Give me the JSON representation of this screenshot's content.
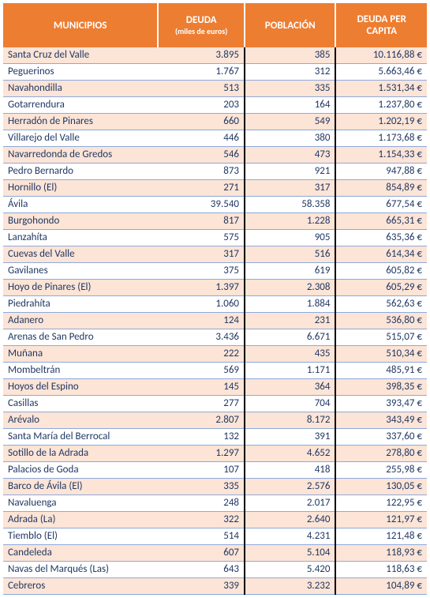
{
  "table": {
    "headers": {
      "municipios": "MUNICIPIOS",
      "deuda": "DEUDA",
      "deuda_sub": "(miles de euros)",
      "poblacion": "POBLACIÓN",
      "per_capita": "DEUDA PER CAPITA"
    },
    "colors": {
      "header_bg": "#ed7d31",
      "header_text": "#ffffff",
      "row_odd_bg": "#fce4d6",
      "row_even_bg": "#ffffff",
      "cell_text": "#203864",
      "row_border": "#8ea9db",
      "col_divider": "#000000"
    },
    "font_size_body": 13,
    "font_size_header": 13,
    "rows": [
      {
        "muni": "Santa Cruz del Valle",
        "deuda": "3.895",
        "pob": "385",
        "pc": "10.116,88 €"
      },
      {
        "muni": "Peguerinos",
        "deuda": "1.767",
        "pob": "312",
        "pc": "5.663,46 €"
      },
      {
        "muni": "Navahondilla",
        "deuda": "513",
        "pob": "335",
        "pc": "1.531,34 €"
      },
      {
        "muni": "Gotarrendura",
        "deuda": "203",
        "pob": "164",
        "pc": "1.237,80 €"
      },
      {
        "muni": "Herradón de Pinares",
        "deuda": "660",
        "pob": "549",
        "pc": "1.202,19 €"
      },
      {
        "muni": "Villarejo del Valle",
        "deuda": "446",
        "pob": "380",
        "pc": "1.173,68 €"
      },
      {
        "muni": "Navarredonda de Gredos",
        "deuda": "546",
        "pob": "473",
        "pc": "1.154,33 €"
      },
      {
        "muni": "Pedro Bernardo",
        "deuda": "873",
        "pob": "921",
        "pc": "947,88 €"
      },
      {
        "muni": "Hornillo (El)",
        "deuda": "271",
        "pob": "317",
        "pc": "854,89 €"
      },
      {
        "muni": "Ávila",
        "deuda": "39.540",
        "pob": "58.358",
        "pc": "677,54 €"
      },
      {
        "muni": "Burgohondo",
        "deuda": "817",
        "pob": "1.228",
        "pc": "665,31 €"
      },
      {
        "muni": "Lanzahíta",
        "deuda": "575",
        "pob": "905",
        "pc": "635,36 €"
      },
      {
        "muni": "Cuevas del Valle",
        "deuda": "317",
        "pob": "516",
        "pc": "614,34 €"
      },
      {
        "muni": "Gavilanes",
        "deuda": "375",
        "pob": "619",
        "pc": "605,82 €"
      },
      {
        "muni": "Hoyo de Pinares (El)",
        "deuda": "1.397",
        "pob": "2.308",
        "pc": "605,29 €"
      },
      {
        "muni": "Piedrahíta",
        "deuda": "1.060",
        "pob": "1.884",
        "pc": "562,63 €"
      },
      {
        "muni": "Adanero",
        "deuda": "124",
        "pob": "231",
        "pc": "536,80 €"
      },
      {
        "muni": "Arenas de San Pedro",
        "deuda": "3.436",
        "pob": "6.671",
        "pc": "515,07 €"
      },
      {
        "muni": "Muñana",
        "deuda": "222",
        "pob": "435",
        "pc": "510,34 €"
      },
      {
        "muni": "Mombeltrán",
        "deuda": "569",
        "pob": "1.171",
        "pc": "485,91 €"
      },
      {
        "muni": "Hoyos del Espino",
        "deuda": "145",
        "pob": "364",
        "pc": "398,35 €"
      },
      {
        "muni": "Casillas",
        "deuda": "277",
        "pob": "704",
        "pc": "393,47 €"
      },
      {
        "muni": "Arévalo",
        "deuda": "2.807",
        "pob": "8.172",
        "pc": "343,49 €"
      },
      {
        "muni": "Santa María del Berrocal",
        "deuda": "132",
        "pob": "391",
        "pc": "337,60 €"
      },
      {
        "muni": "Sotillo de la Adrada",
        "deuda": "1.297",
        "pob": "4.652",
        "pc": "278,80 €"
      },
      {
        "muni": "Palacios de Goda",
        "deuda": "107",
        "pob": "418",
        "pc": "255,98 €"
      },
      {
        "muni": "Barco de Ávila (El)",
        "deuda": "335",
        "pob": "2.576",
        "pc": "130,05 €"
      },
      {
        "muni": "Navaluenga",
        "deuda": "248",
        "pob": "2.017",
        "pc": "122,95 €"
      },
      {
        "muni": "Adrada (La)",
        "deuda": "322",
        "pob": "2.640",
        "pc": "121,97 €"
      },
      {
        "muni": "Tiemblo (El)",
        "deuda": "514",
        "pob": "4.231",
        "pc": "121,48 €"
      },
      {
        "muni": "Candeleda",
        "deuda": "607",
        "pob": "5.104",
        "pc": "118,93 €"
      },
      {
        "muni": "Navas del Marqués (Las)",
        "deuda": "643",
        "pob": "5.420",
        "pc": "118,63 €"
      },
      {
        "muni": "Cebreros",
        "deuda": "339",
        "pob": "3.232",
        "pc": "104,89 €"
      }
    ]
  }
}
